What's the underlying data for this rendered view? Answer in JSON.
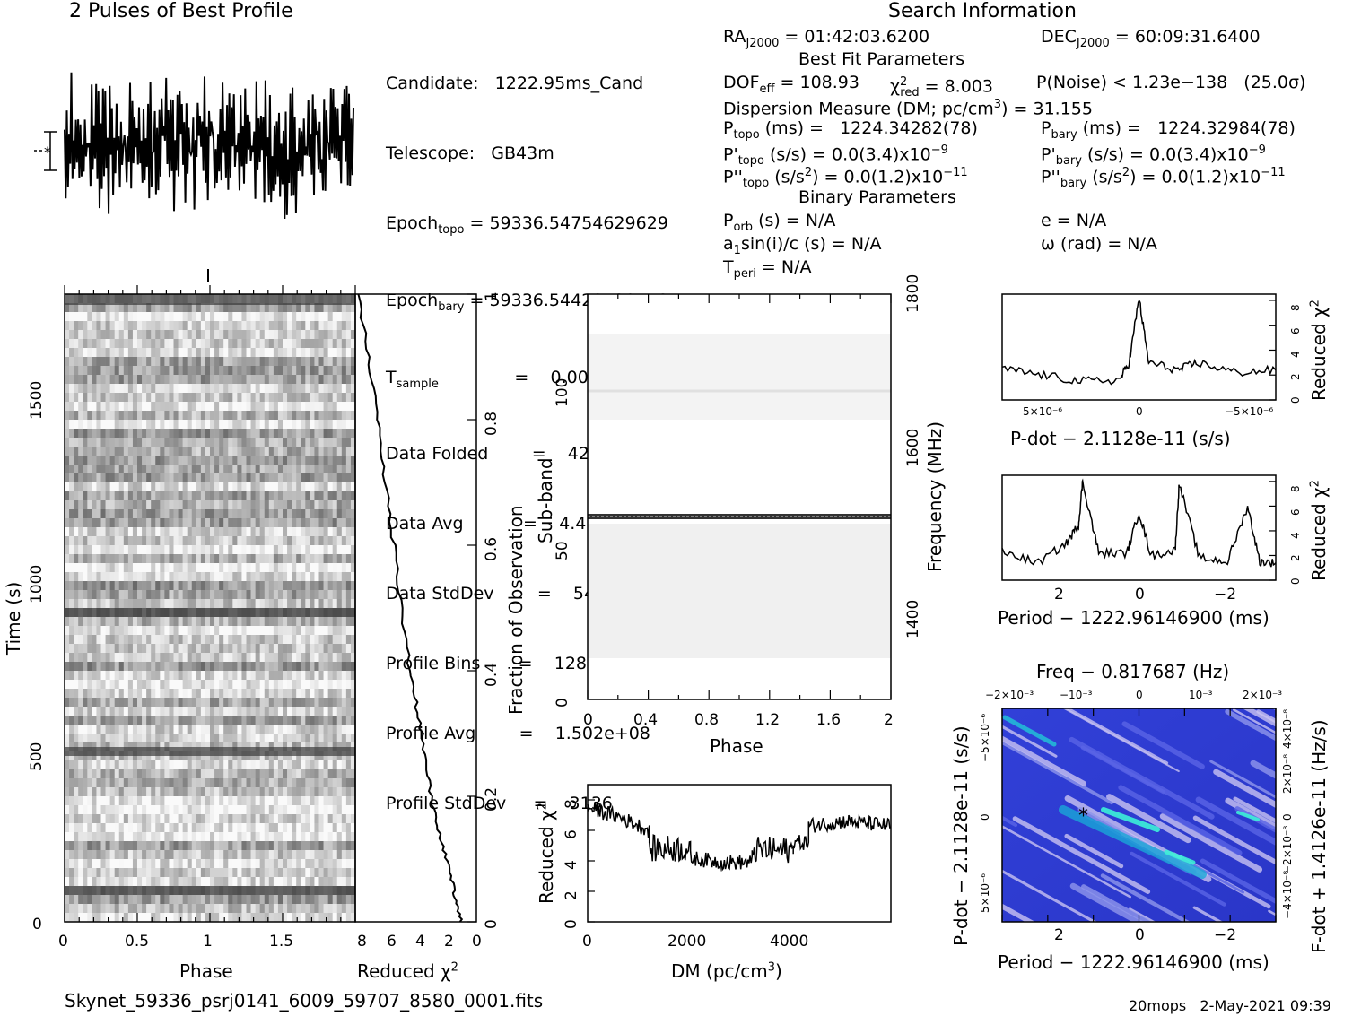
{
  "profile_panel": {
    "title": "2 Pulses of Best Profile"
  },
  "search_info": {
    "title": "Search Information",
    "left_lines": [
      "Candidate:   1222.95ms_Cand",
      "Telescope:   GB43m",
      "Epoch",
      "Epoch",
      "T",
      "Data Folded        =    428032",
      "Data Avg           =    4.494e+04",
      "Data StdDev        =    54.23",
      "Profile Bins       =    128",
      "Profile Avg        =    1.502e+08",
      "Profile StdDev     =    3136"
    ],
    "epoch_topo": {
      "main": "Epoch",
      "sub": "topo",
      "rest": " = 59336.54754629629"
    },
    "epoch_bary": {
      "main": "Epoch",
      "sub": "bary",
      "rest": " = 59336.54429129718"
    },
    "tsample": {
      "main": "T",
      "sub": "sample",
      "rest": "              =    0.0041943"
    },
    "ra": {
      "main": "RA",
      "sub": "J2000",
      "rest": " = 01:42:03.6200"
    },
    "dec": {
      "main": "DEC",
      "sub": "J2000",
      "rest": " = 60:09:31.6400"
    },
    "best_fit_title": "Best Fit Parameters",
    "dof": "DOF",
    "dof_sub": "eff",
    "dof_rest": " = 108.93",
    "chi_text": "χ",
    "chi_sup": "2",
    "chi_sub": "red",
    "chi_rest": " = 8.003",
    "pnoise": "P(Noise) < 1.23e−138   (25.0σ)",
    "dm_line": "Dispersion Measure (DM; pc/cm",
    "dm_sup": "3",
    "dm_rest": ") = 31.155",
    "ptopo": {
      "main": "P",
      "sub": "topo",
      "rest": " (ms) =   1224.34282(78)"
    },
    "pbary": {
      "main": "P",
      "sub": "bary",
      "rest": " (ms) =   1224.32984(78)"
    },
    "pdtopo": {
      "main": "P'",
      "sub": "topo",
      "rest": " (s/s) = 0.0(3.4)x10",
      "exp": "−9"
    },
    "pdbary": {
      "main": "P'",
      "sub": "bary",
      "rest": " (s/s) = 0.0(3.4)x10",
      "exp": "−9"
    },
    "pddtopo": {
      "main": "P''",
      "sub": "topo",
      "rest": " (s/s",
      "sq": "2",
      "rest2": ") = 0.0(1.2)x10",
      "exp": "−11"
    },
    "pddbary": {
      "main": "P''",
      "sub": "bary",
      "rest": " (s/s",
      "sq": "2",
      "rest2": ") = 0.0(1.2)x10",
      "exp": "−11"
    },
    "binary_title": "Binary Parameters",
    "porb": {
      "main": "P",
      "sub": "orb",
      "rest": " (s) = N/A"
    },
    "a1": {
      "main": "a",
      "sub": "1",
      "rest": "sin(i)/c (s) = N/A"
    },
    "tperi": {
      "main": "T",
      "sub": "peri",
      "rest": " = N/A"
    },
    "ecc": "e = N/A",
    "omega": "ω (rad) = N/A"
  },
  "axis_labels": {
    "time": "Time (s)",
    "phase_left": "Phase",
    "reduced_chi": "Reduced χ",
    "chi_sup": "2",
    "fraction_obs": "Fraction of Observation",
    "subband": "Sub-band",
    "frequency": "Frequency (MHz)",
    "phase_mid": "Phase",
    "dm": "DM (pc/cm",
    "dm_sup": "3",
    "dm_close": ")",
    "pdot_x": "P-dot − 2.1128e-11 (s/s)",
    "period_x": "Period − 1222.96146900 (ms)",
    "freq_top": "Freq − 0.817687 (Hz)",
    "pdot_y": "P-dot − 2.1128e-11 (s/s)",
    "fdot_y": "F-dot + 1.4126e-11 (Hz/s)",
    "period_bottom": "Period − 1222.96146900 (ms)"
  },
  "ticks": {
    "time": [
      "0",
      "500",
      "1000",
      "1500"
    ],
    "phase_left": [
      "0",
      "0.5",
      "1",
      "1.5"
    ],
    "redchi_bottom": [
      "8",
      "6",
      "4",
      "2",
      "0"
    ],
    "fraction": [
      "0",
      "0.2",
      "0.4",
      "0.6",
      "0.8",
      "1"
    ],
    "subband": [
      "0",
      "50",
      "100"
    ],
    "freq": [
      "1400",
      "1600",
      "1800"
    ],
    "phase_mid": [
      "0",
      "0.4",
      "0.8",
      "1.2",
      "1.6",
      "2"
    ],
    "dm_y": [
      "0",
      "2",
      "4",
      "6",
      "8"
    ],
    "dm_x": [
      "0",
      "2000",
      "4000"
    ],
    "small_y": [
      "0",
      "2",
      "4",
      "6",
      "8"
    ],
    "pdot_x": [
      "5×10⁻⁶",
      "0",
      "−5×10⁻⁶"
    ],
    "period_x": [
      "2",
      "0",
      "−2"
    ],
    "freq_top": [
      "−2×10⁻³",
      "−10⁻³",
      "0",
      "10⁻³",
      "2×10⁻³"
    ],
    "pdot_left": [
      "5×10⁻⁶",
      "0",
      "−5×10⁻⁶"
    ],
    "fdot_right": [
      "−4×10⁻⁸",
      "−2×10⁻⁸",
      "0",
      "2×10⁻⁸",
      "4×10⁻⁸"
    ],
    "period_bottom": [
      "2",
      "0",
      "−2"
    ]
  },
  "footer": {
    "filename": "Skynet_59336_psrj0141_6009_59707_8580_0001.fits",
    "stamp": "20mops   2-May-2021 09:39"
  },
  "chart_data": [
    {
      "type": "line",
      "title": "2 Pulses of Best Profile",
      "xlabel": "",
      "ylabel": "",
      "note": "noisy profile, no significant pulse"
    },
    {
      "type": "heatmap",
      "xlabel": "Phase",
      "ylabel": "Time (s)",
      "xlim": [
        0,
        2
      ],
      "ylim": [
        0,
        1750
      ]
    },
    {
      "type": "line",
      "xlabel": "Reduced χ2",
      "ylabel": "Fraction of Observation",
      "xlim": [
        8,
        0
      ],
      "ylim": [
        0,
        1
      ],
      "x": [
        1,
        1.5,
        2.2,
        3.0,
        3.6,
        4.4,
        5.2,
        6.0,
        6.8,
        7.8
      ],
      "y": [
        0,
        0.05,
        0.12,
        0.2,
        0.3,
        0.4,
        0.55,
        0.7,
        0.85,
        1.0
      ]
    },
    {
      "type": "heatmap",
      "xlabel": "Phase",
      "ylabel": "Sub-band",
      "xlim": [
        0,
        2
      ],
      "ylim": [
        0,
        128
      ],
      "y2label": "Frequency (MHz)"
    },
    {
      "type": "line",
      "xlabel": "DM (pc/cm3)",
      "ylabel": "Reduced χ2",
      "xlim": [
        0,
        5900
      ],
      "ylim": [
        0,
        9
      ],
      "x": [
        0,
        600,
        1200,
        1200,
        2000,
        2000,
        2600,
        3200,
        3200,
        4000,
        4000,
        4300,
        4300,
        5000,
        5900
      ],
      "y": [
        7.5,
        6.9,
        6.0,
        4.8,
        4.8,
        4.2,
        3.9,
        3.9,
        4.7,
        4.7,
        5.2,
        5.2,
        6.3,
        6.6,
        6.3
      ]
    },
    {
      "type": "line",
      "xlabel": "P-dot − 2.1128e-11 (s/s)",
      "ylabel": "Reduced χ2",
      "xlim": [
        7e-06,
        -7e-06
      ],
      "ylim": [
        0,
        8.5
      ],
      "x": [
        7e-06,
        5e-06,
        3e-06,
        1e-06,
        5e-07,
        0,
        -5e-07,
        -2e-06,
        -3e-06,
        -5e-06,
        -7e-06
      ],
      "y": [
        2.5,
        2.0,
        1.5,
        1.6,
        3.0,
        8.2,
        3.0,
        2.4,
        3.0,
        2.2,
        2.4
      ]
    },
    {
      "type": "line",
      "xlabel": "Period − 1222.96146900 (ms)",
      "ylabel": "Reduced χ2",
      "xlim": [
        3.4,
        -3.4
      ],
      "ylim": [
        0,
        8.5
      ],
      "x": [
        3.4,
        2.5,
        1.8,
        1.5,
        1.4,
        1.0,
        0.3,
        0,
        -0.3,
        -0.9,
        -1.0,
        -1.5,
        -2.2,
        -2.7,
        -3.0,
        -3.4
      ],
      "y": [
        2.3,
        1.4,
        3.0,
        4.5,
        8.0,
        2.2,
        2.2,
        5.5,
        2.0,
        2.4,
        7.8,
        1.8,
        1.5,
        6.0,
        1.5,
        1.4
      ]
    },
    {
      "type": "heatmap",
      "xlabel": "Period − 1222.96146900 (ms)",
      "ylabel": "P-dot − 2.1128e-11 (s/s)",
      "x2label": "Freq − 0.817687 (Hz)",
      "y2label": "F-dot + 1.4126e-11 (Hz/s)",
      "xlim": [
        3.4,
        -3.4
      ],
      "ylim": [
        7e-06,
        -7e-06
      ]
    }
  ],
  "colors": {
    "ink": "#000000",
    "gray_dark": "#3a3a3a",
    "ppdot_bg": "#3b3fe0",
    "ppdot_light": "#c8c0f0",
    "ppdot_peak": "#22e8e0"
  }
}
